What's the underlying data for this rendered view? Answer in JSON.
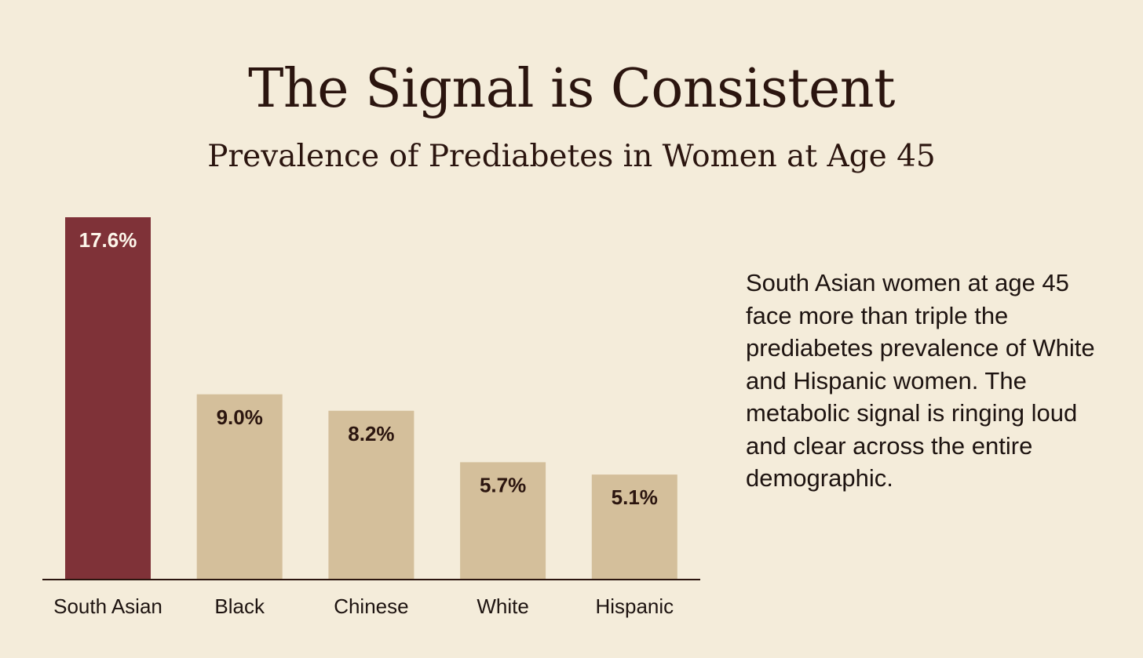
{
  "chart_data": {
    "type": "bar",
    "title": "The Signal is Consistent",
    "subtitle": "Prevalence of Prediabetes in Women at Age 45",
    "categories": [
      "South Asian",
      "Black",
      "Chinese",
      "White",
      "Hispanic"
    ],
    "values": [
      17.6,
      9.0,
      8.2,
      5.7,
      5.1
    ],
    "value_labels": [
      "17.6%",
      "9.0%",
      "8.2%",
      "5.7%",
      "5.1%"
    ],
    "unit": "%",
    "xlabel": "",
    "ylabel": "",
    "ylim": [
      0,
      17.6
    ],
    "grid": false,
    "highlight_index": 0,
    "colors": {
      "highlight": "#7f3238",
      "bar": "#d4bf9b",
      "highlight_label": "#fdf6ea",
      "label": "#2b150f",
      "axis": "#2b150f",
      "tick_label": "#1d1310"
    }
  },
  "callout": {
    "text": "South Asian women at age 45 face more than triple the prediabetes prevalence of White and Hispanic women. The metabolic signal is ringing loud and clear across the entire demographic."
  }
}
